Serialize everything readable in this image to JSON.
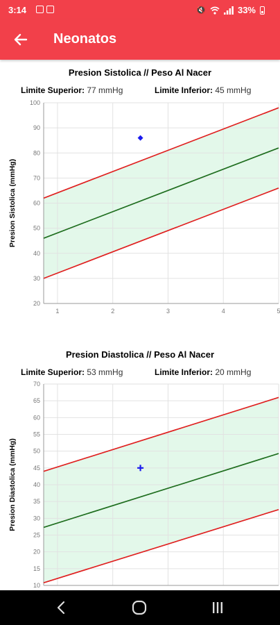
{
  "status_bar": {
    "time": "3:14",
    "battery": "33%",
    "left_icons": [
      "image-icon",
      "gallery-icon"
    ],
    "right_icons": [
      "mute-icon",
      "wifi-icon",
      "signal-icon",
      "battery-icon"
    ]
  },
  "app_bar": {
    "title": "Neonatos",
    "back_icon": "arrow-left-icon",
    "color": "#f2404a"
  },
  "charts": [
    {
      "title": "Presion Sistolica // Peso Al Nacer",
      "upper_label": "Limite Superior:",
      "upper_value": "77 mmHg",
      "lower_label": "Limite Inferior:",
      "lower_value": "45 mmHg",
      "ylabel": "Presion Sistolica (mmHg)"
    },
    {
      "title": "Presion Diastolica // Peso Al Nacer",
      "upper_label": "Limite Superior:",
      "upper_value": "53 mmHg",
      "lower_label": "Limite Inferior:",
      "lower_value": "20 mmHg",
      "ylabel": "Presion Diastolica (mmHg)"
    }
  ],
  "chart_data": [
    {
      "type": "line",
      "title": "Presion Sistolica // Peso Al Nacer",
      "xlabel": "",
      "ylabel": "Presion Sistolica (mmHg)",
      "xlim": [
        0.75,
        5
      ],
      "ylim": [
        20,
        100
      ],
      "xticks": [
        1,
        2,
        3,
        4,
        5
      ],
      "yticks": [
        20,
        30,
        40,
        50,
        60,
        70,
        80,
        90,
        100
      ],
      "grid": true,
      "band_fill": "#e3f8ea",
      "series": [
        {
          "color": "#e02020",
          "x": [
            0.75,
            5
          ],
          "y": [
            62,
            98
          ]
        },
        {
          "color": "#1f6e1f",
          "x": [
            0.75,
            5
          ],
          "y": [
            46,
            82
          ]
        },
        {
          "color": "#e02020",
          "x": [
            0.75,
            5
          ],
          "y": [
            30,
            66
          ]
        }
      ],
      "points": [
        {
          "x": 2.5,
          "y": 86,
          "color": "#1a1aee",
          "marker": "diamond"
        }
      ]
    },
    {
      "type": "line",
      "title": "Presion Diastolica // Peso Al Nacer",
      "xlabel": "",
      "ylabel": "Presion Diastolica (mmHg)",
      "xlim": [
        0.75,
        5
      ],
      "ylim": [
        10,
        70
      ],
      "xticks": [
        1,
        2,
        3,
        4,
        5
      ],
      "yticks": [
        10,
        15,
        20,
        25,
        30,
        35,
        40,
        45,
        50,
        55,
        60,
        65,
        70
      ],
      "grid": true,
      "band_fill": "#e3f8ea",
      "series": [
        {
          "color": "#e02020",
          "x": [
            0.75,
            5
          ],
          "y": [
            44,
            66
          ]
        },
        {
          "color": "#1f6e1f",
          "x": [
            0.75,
            5
          ],
          "y": [
            27.3,
            49.3
          ]
        },
        {
          "color": "#e02020",
          "x": [
            0.75,
            5
          ],
          "y": [
            10.8,
            32.6
          ]
        }
      ],
      "points": [
        {
          "x": 2.5,
          "y": 45,
          "color": "#1a1aee",
          "marker": "plus"
        }
      ]
    }
  ],
  "nav_bar": {
    "icons": [
      "back-nav-icon",
      "home-nav-icon",
      "recents-nav-icon"
    ]
  }
}
